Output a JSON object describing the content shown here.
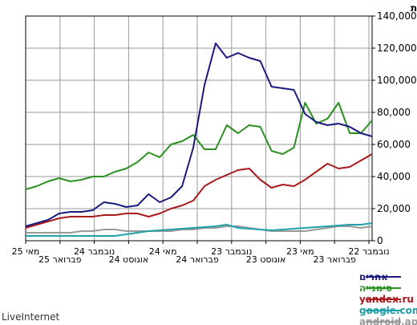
{
  "chart_data": {
    "type": "line",
    "ylabel": "כמות",
    "ylim": [
      0,
      140000
    ],
    "y_ticks": [
      "140,000",
      "120,000",
      "100,000",
      "80,000",
      "60,000",
      "40,000",
      "20,000",
      "0"
    ],
    "x_tick_labels": [
      "נובמבר 22",
      "פברואר 23",
      "מאי 23",
      "אוגוסט 23",
      "נובמבר 23",
      "פברואר 24",
      "מאי 24",
      "אוגוסט 24",
      "נובמבר 24",
      "פברואר 25",
      "מאי 25"
    ],
    "x_axis_direction": "right-to-left",
    "grid": true,
    "legend_position": "bottom-right",
    "series": [
      {
        "name": "אחרים",
        "color": "#1a1a80",
        "values": [
          65000,
          67000,
          71000,
          73000,
          72000,
          74000,
          79000,
          94000,
          95000,
          96000,
          112000,
          114000,
          117000,
          114000,
          123000,
          97000,
          58000,
          34000,
          27000,
          24000,
          29000,
          22000,
          21000,
          23000,
          24000,
          19000,
          18000,
          18000,
          17000,
          13000,
          11000,
          9000
        ]
      },
      {
        "name": "סימנייה",
        "color": "#2a9020",
        "values": [
          75000,
          67000,
          67000,
          86000,
          76000,
          73000,
          86000,
          58000,
          54000,
          56000,
          71000,
          72000,
          67000,
          72000,
          57000,
          57000,
          66000,
          62000,
          60000,
          52000,
          55000,
          49000,
          45000,
          43000,
          40000,
          40000,
          38000,
          37000,
          39000,
          37000,
          34000,
          32000
        ]
      },
      {
        "name": "yandex.ru",
        "color": "#aa1a1a",
        "values": [
          54000,
          50000,
          46000,
          45000,
          48000,
          43000,
          38000,
          34000,
          35000,
          33000,
          38000,
          45000,
          44000,
          41000,
          38000,
          34000,
          25000,
          22000,
          20000,
          17000,
          15000,
          17000,
          17000,
          16000,
          16000,
          15000,
          15000,
          15000,
          14000,
          12000,
          10000,
          8000
        ]
      },
      {
        "name": "google.com",
        "color": "#20a0a8",
        "values": [
          11000,
          10000,
          10000,
          9500,
          9000,
          8500,
          8000,
          7500,
          7000,
          6500,
          7000,
          7500,
          8000,
          10000,
          9000,
          8500,
          8000,
          7500,
          7000,
          6500,
          6000,
          5000,
          4000,
          3000,
          3000,
          3000,
          3000,
          3000,
          3000,
          3000,
          3000,
          3000
        ]
      },
      {
        "name": "android.app",
        "color": "#999999",
        "values": [
          9000,
          8000,
          9000,
          9000,
          8000,
          7000,
          6000,
          6000,
          6000,
          6000,
          7000,
          8000,
          9000,
          9000,
          8000,
          8000,
          7000,
          7000,
          6000,
          6000,
          6000,
          6000,
          6000,
          7000,
          7000,
          6000,
          6000,
          5000,
          5000,
          5000,
          5000,
          5000
        ]
      }
    ]
  },
  "branding": {
    "watermark": "LiveInternet"
  }
}
